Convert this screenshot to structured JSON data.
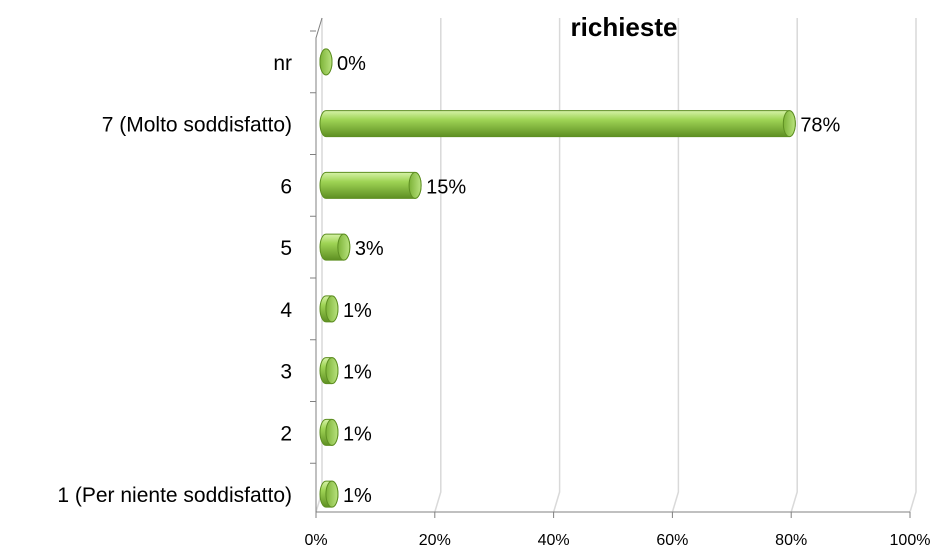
{
  "chart_data": {
    "type": "bar",
    "orientation": "horizontal",
    "title": "richieste",
    "categories": [
      "nr",
      "7 (Molto soddisfatto)",
      "6",
      "5",
      "4",
      "3",
      "2",
      "1 (Per niente soddisfatto)"
    ],
    "values": [
      0,
      78,
      15,
      3,
      1,
      1,
      1,
      1
    ],
    "data_labels": [
      "0%",
      "78%",
      "15%",
      "3%",
      "1%",
      "1%",
      "1%",
      "1%"
    ],
    "x_ticks": [
      "0%",
      "20%",
      "40%",
      "60%",
      "80%",
      "100%"
    ],
    "xlim": [
      0,
      100
    ],
    "grid": true,
    "legend": "none",
    "style": "3d-cylinder",
    "colors": {
      "bar_light": "#b3e07a",
      "bar_mid": "#8cc63f",
      "bar_dark": "#5e8f22",
      "grid": "#d9d9d9",
      "axis": "#808080"
    }
  }
}
